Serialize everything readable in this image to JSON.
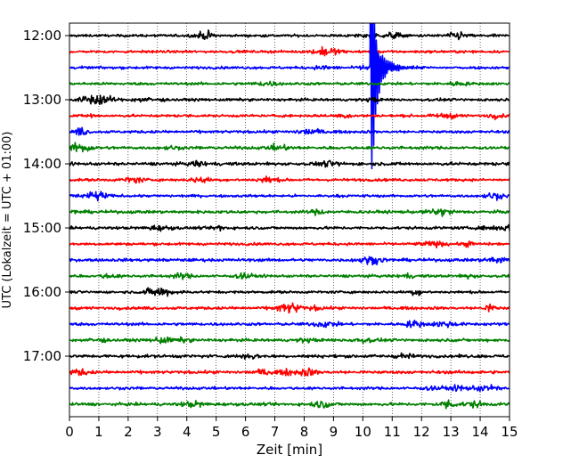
{
  "chart_data": {
    "type": "line",
    "title": "",
    "xlabel": "Zeit  [min]",
    "ylabel": "UTC (Lokalzeit = UTC + 01:00)",
    "xlim": [
      0,
      15
    ],
    "xticks": [
      0,
      1,
      2,
      3,
      4,
      5,
      6,
      7,
      8,
      9,
      10,
      11,
      12,
      13,
      14,
      15
    ],
    "x_grid": "dotted-vertical",
    "y_time_labels": [
      "12:00",
      "13:00",
      "14:00",
      "15:00",
      "16:00",
      "17:00"
    ],
    "trace_interval_min": 15,
    "trace_start": "12:00",
    "trace_count": 24,
    "trace_colors": [
      "#000000",
      "#ff0000",
      "#0000ff",
      "#008000"
    ],
    "event": {
      "trace": 2,
      "time_label": "12:30",
      "onset_min": 10.25,
      "peak_min": 10.3,
      "coda_end_min": 11.8,
      "note": "large transient signal"
    }
  }
}
